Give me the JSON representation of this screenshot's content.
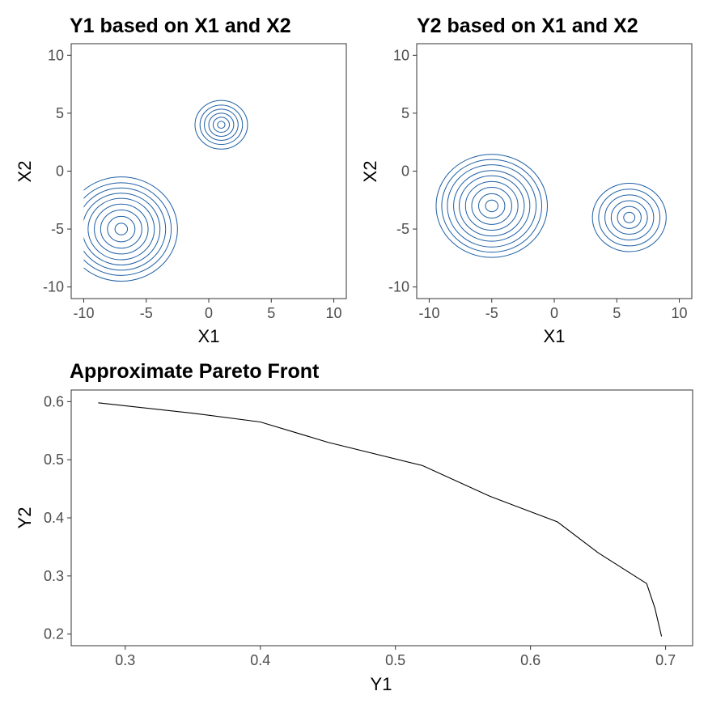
{
  "chart_data": [
    {
      "type": "contour",
      "title": "Y1 based on X1 and X2",
      "xlabel": "X1",
      "ylabel": "X2",
      "xlim": [
        -11,
        11
      ],
      "ylim": [
        -11,
        11
      ],
      "xticks": [
        -10,
        -5,
        0,
        5,
        10
      ],
      "yticks": [
        -10,
        -5,
        0,
        5,
        10
      ],
      "xtick_labels": [
        "-10",
        "-5",
        "0",
        "5",
        "10"
      ],
      "ytick_labels": [
        "-10",
        "-5",
        "0",
        "5",
        "10"
      ],
      "line_color": "#1f5fa5",
      "peaks": [
        {
          "center": [
            -7,
            -5
          ],
          "radii": [
            0.5,
            1.1,
            1.65,
            2.15,
            2.65,
            3.1,
            3.55,
            4.0,
            4.5
          ]
        },
        {
          "center": [
            1,
            4
          ],
          "radii": [
            0.3,
            0.65,
            1.0,
            1.35,
            1.7,
            2.1
          ]
        }
      ],
      "clip_x_min": -10,
      "grid": false
    },
    {
      "type": "contour",
      "title": "Y2 based on X1 and X2",
      "xlabel": "X1",
      "ylabel": "X2",
      "xlim": [
        -11,
        11
      ],
      "ylim": [
        -11,
        11
      ],
      "xticks": [
        -10,
        -5,
        0,
        5,
        10
      ],
      "yticks": [
        -10,
        -5,
        0,
        5,
        10
      ],
      "xtick_labels": [
        "-10",
        "-5",
        "0",
        "5",
        "10"
      ],
      "ytick_labels": [
        "-10",
        "-5",
        "0",
        "5",
        "10"
      ],
      "line_color": "#1f5fa5",
      "peaks": [
        {
          "center": [
            -5,
            -3
          ],
          "radii": [
            0.5,
            1.05,
            1.6,
            2.1,
            2.6,
            3.05,
            3.55,
            4.0,
            4.45
          ]
        },
        {
          "center": [
            6,
            -4
          ],
          "radii": [
            0.45,
            0.95,
            1.45,
            1.95,
            2.45,
            2.95
          ]
        }
      ],
      "clip_x_min": null,
      "grid": false
    },
    {
      "type": "line",
      "title": "Approximate Pareto Front",
      "xlabel": "Y1",
      "ylabel": "Y2",
      "xlim": [
        0.26,
        0.72
      ],
      "ylim": [
        0.18,
        0.62
      ],
      "xticks": [
        0.3,
        0.4,
        0.5,
        0.6,
        0.7
      ],
      "yticks": [
        0.2,
        0.3,
        0.4,
        0.5,
        0.6
      ],
      "xtick_labels": [
        "0.3",
        "0.4",
        "0.5",
        "0.6",
        "0.7"
      ],
      "ytick_labels": [
        "0.2",
        "0.3",
        "0.4",
        "0.5",
        "0.6"
      ],
      "line_color": "#000000",
      "x": [
        0.28,
        0.35,
        0.4,
        0.45,
        0.52,
        0.57,
        0.62,
        0.65,
        0.686,
        0.692,
        0.697
      ],
      "y": [
        0.598,
        0.58,
        0.565,
        0.53,
        0.49,
        0.437,
        0.393,
        0.34,
        0.287,
        0.245,
        0.196
      ],
      "grid": false
    }
  ]
}
